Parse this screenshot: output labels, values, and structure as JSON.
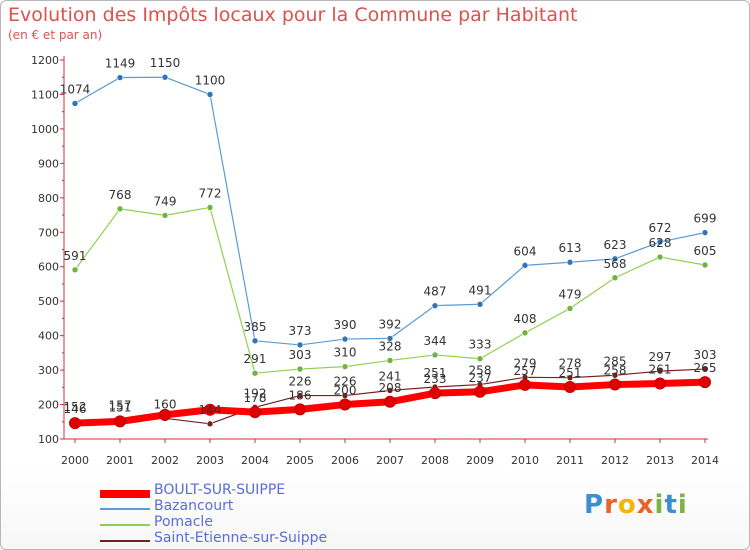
{
  "title": "Evolution des Impôts locaux pour la Commune par Habitant",
  "subtitle": "(en € et par an)",
  "logo": {
    "text": "Proxiti",
    "colors": [
      "#3b8fd0",
      "#e8632a",
      "#f2b705",
      "#e8632a",
      "#7cb342",
      "#3b8fd0",
      "#7cb342"
    ]
  },
  "chart_data": {
    "type": "line",
    "x": [
      "2000",
      "2001",
      "2002",
      "2003",
      "2004",
      "2005",
      "2006",
      "2007",
      "2008",
      "2009",
      "2010",
      "2011",
      "2012",
      "2013",
      "2014"
    ],
    "ylim": [
      100,
      1200
    ],
    "yticks": [
      "100",
      "200",
      "300",
      "400",
      "500",
      "600",
      "700",
      "800",
      "900",
      "1000",
      "1100",
      "1200"
    ],
    "grid": false,
    "legend_position": "bottom-left",
    "series": [
      {
        "name": "BOULT-SUR-SUIPPE",
        "color": "#ff0000",
        "marker": "#e00000",
        "values": [
          146,
          151,
          170,
          185,
          178,
          186,
          200,
          208,
          233,
          237,
          257,
          251,
          258,
          261,
          265
        ],
        "labels": [
          "146",
          "151",
          "",
          "",
          "178",
          "186",
          "200",
          "208",
          "233",
          "237",
          "257",
          "251",
          "258",
          "261",
          "265"
        ]
      },
      {
        "name": "Bazancourt",
        "color": "#5b9bd5",
        "marker": "#2e75b6",
        "values": [
          1074,
          1149,
          1150,
          1100,
          385,
          373,
          390,
          392,
          487,
          491,
          604,
          613,
          623,
          672,
          699
        ],
        "labels": [
          "1074",
          "1149",
          "1150",
          "1100",
          "385",
          "373",
          "390",
          "392",
          "487",
          "491",
          "604",
          "613",
          "623",
          "672",
          "699"
        ]
      },
      {
        "name": "Pomacle",
        "color": "#8fd14f",
        "marker": "#6db33f",
        "values": [
          591,
          768,
          749,
          772,
          291,
          303,
          310,
          328,
          344,
          333,
          408,
          479,
          568,
          628,
          605
        ],
        "labels": [
          "591",
          "768",
          "749",
          "772",
          "291",
          "303",
          "310",
          "328",
          "344",
          "333",
          "408",
          "479",
          "568",
          "628",
          "605"
        ]
      },
      {
        "name": "Saint-Etienne-sur-Suippe",
        "color": "#7a1f1f",
        "marker": "#7a1f1f",
        "values": [
          152,
          157,
          160,
          144,
          192,
          226,
          226,
          241,
          251,
          258,
          279,
          278,
          285,
          297,
          303
        ],
        "labels": [
          "152",
          "157",
          "160",
          "144",
          "192",
          "226",
          "226",
          "241",
          "251",
          "258",
          "279",
          "278",
          "285",
          "297",
          "303"
        ]
      }
    ]
  }
}
